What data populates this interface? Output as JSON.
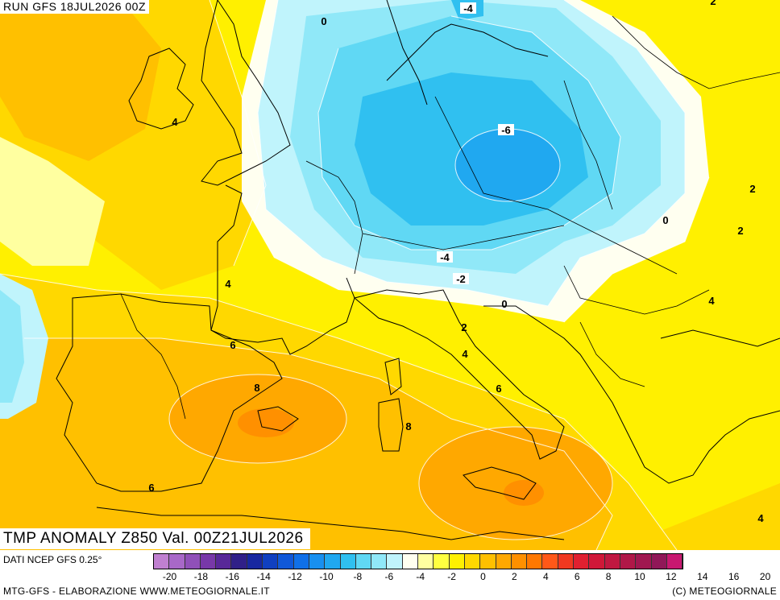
{
  "header": {
    "run_label": "RUN GFS 18JUL2026 00Z"
  },
  "title": {
    "text": "TMP ANOMALY Z850 Val. 00Z21JUL2026"
  },
  "footer": {
    "source": "DATI NCEP GFS 0.25°",
    "credit_left": "MTG-GFS - ELABORAZIONE WWW.METEOGIORNALE.IT",
    "credit_right": "(C) METEOGIORNALE"
  },
  "legend": {
    "colors": [
      "#c080d0",
      "#a868c8",
      "#9050b8",
      "#7838a8",
      "#582898",
      "#302088",
      "#1828a0",
      "#1040c0",
      "#1058d8",
      "#1070e8",
      "#1890f0",
      "#20a8f0",
      "#30c0f0",
      "#60d8f4",
      "#90e8f8",
      "#c0f4fc",
      "#fffff0",
      "#ffffa0",
      "#ffff40",
      "#fff000",
      "#ffd800",
      "#ffc000",
      "#ffa800",
      "#ff9000",
      "#ff7800",
      "#ff5818",
      "#f03820",
      "#e02030",
      "#d01838",
      "#c01840",
      "#b01848",
      "#a01850",
      "#901858",
      "#c81870"
    ],
    "ticks": [
      "-20",
      "-18",
      "-16",
      "-14",
      "-12",
      "-10",
      "-8",
      "-6",
      "-4",
      "-2",
      "0",
      "2",
      "4",
      "6",
      "8",
      "10",
      "12",
      "14",
      "16",
      "20"
    ]
  },
  "contour_labels": [
    {
      "text": "0"
    },
    {
      "text": "-4"
    },
    {
      "text": "2"
    },
    {
      "text": "4"
    },
    {
      "text": "-6"
    },
    {
      "text": "2"
    },
    {
      "text": "0"
    },
    {
      "text": "2"
    },
    {
      "text": "4"
    },
    {
      "text": "-4"
    },
    {
      "text": "-2"
    },
    {
      "text": "0"
    },
    {
      "text": "4"
    },
    {
      "text": "2"
    },
    {
      "text": "6"
    },
    {
      "text": "4"
    },
    {
      "text": "8"
    },
    {
      "text": "6"
    },
    {
      "text": "8"
    },
    {
      "text": "6"
    },
    {
      "text": "4"
    }
  ]
}
